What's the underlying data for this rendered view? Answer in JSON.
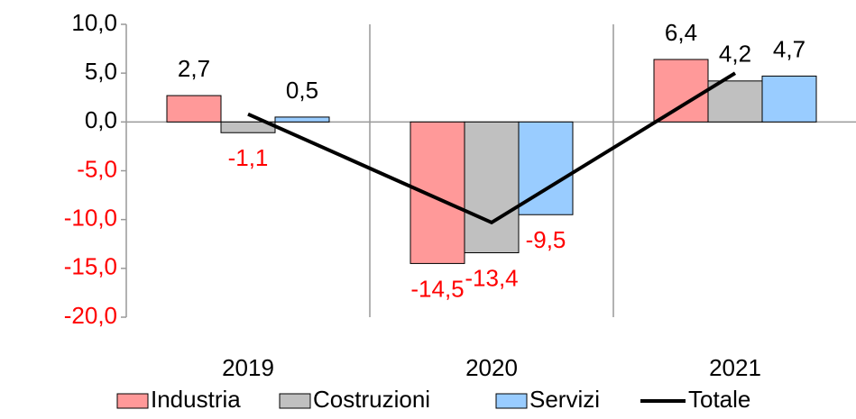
{
  "chart_data": {
    "type": "bar",
    "categories": [
      "2019",
      "2020",
      "2021"
    ],
    "series": [
      {
        "name": "Industria",
        "color": "#ff9999",
        "values": [
          2.7,
          -14.5,
          6.4
        ],
        "value_labels": [
          "2,7",
          "-14,5",
          "6,4"
        ]
      },
      {
        "name": "Costruzioni",
        "color": "#c0c0c0",
        "values": [
          -1.1,
          -13.4,
          4.2
        ],
        "value_labels": [
          "-1,1",
          "-13,4",
          "4,2"
        ]
      },
      {
        "name": "Servizi",
        "color": "#99ccff",
        "values": [
          0.5,
          -9.5,
          4.7
        ],
        "value_labels": [
          "0,5",
          "-9,5",
          "4,7"
        ]
      },
      {
        "name": "Totale",
        "type": "line",
        "color": "#000000",
        "values": [
          0.8,
          -10.3,
          5.0
        ]
      }
    ],
    "ylim": [
      -20,
      10
    ],
    "yticks": [
      {
        "value": 10,
        "label": "10,0"
      },
      {
        "value": 5,
        "label": "5,0"
      },
      {
        "value": 0,
        "label": "0,0"
      },
      {
        "value": -5,
        "label": "-5,0"
      },
      {
        "value": -10,
        "label": "-10,0"
      },
      {
        "value": -15,
        "label": "-15,0"
      },
      {
        "value": -20,
        "label": "-20,0"
      }
    ],
    "negative_color": "#ff0000"
  }
}
